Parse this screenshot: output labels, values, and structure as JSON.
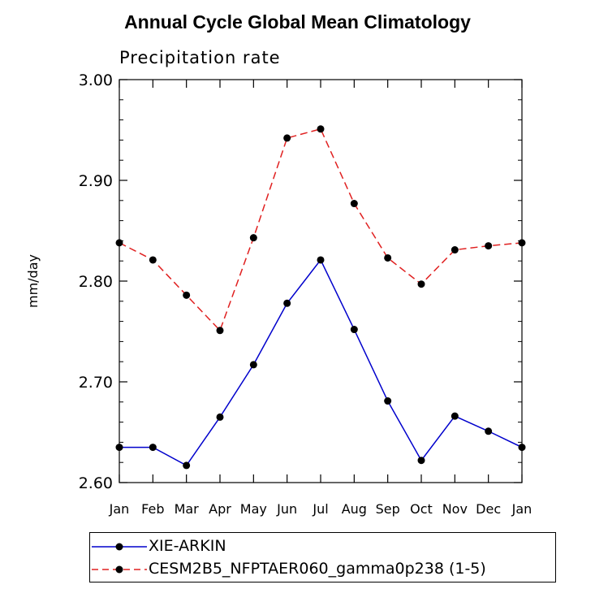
{
  "chart_data": {
    "type": "line",
    "title": "Annual Cycle Global Mean Climatology",
    "subtitle": "Precipitation rate",
    "xlabel": "",
    "ylabel": "mm/day",
    "categories": [
      "Jan",
      "Feb",
      "Mar",
      "Apr",
      "May",
      "Jun",
      "Jul",
      "Aug",
      "Sep",
      "Oct",
      "Nov",
      "Dec",
      "Jan"
    ],
    "ylim": [
      2.6,
      3.0
    ],
    "yticks": [
      "2.60",
      "2.70",
      "2.80",
      "2.90",
      "3.00"
    ],
    "legend_position": "bottom",
    "series": [
      {
        "name": "XIE-ARKIN",
        "color": "#0000cc",
        "dash": "solid",
        "values": [
          2.635,
          2.635,
          2.617,
          2.665,
          2.717,
          2.778,
          2.821,
          2.752,
          2.681,
          2.622,
          2.666,
          2.651,
          2.635
        ]
      },
      {
        "name": "CESM2B5_NFPTAER060_gamma0p238 (1-5)",
        "color": "#e02020",
        "dash": "dashed",
        "values": [
          2.838,
          2.821,
          2.786,
          2.751,
          2.843,
          2.942,
          2.951,
          2.877,
          2.823,
          2.797,
          2.831,
          2.835,
          2.838
        ]
      }
    ]
  }
}
